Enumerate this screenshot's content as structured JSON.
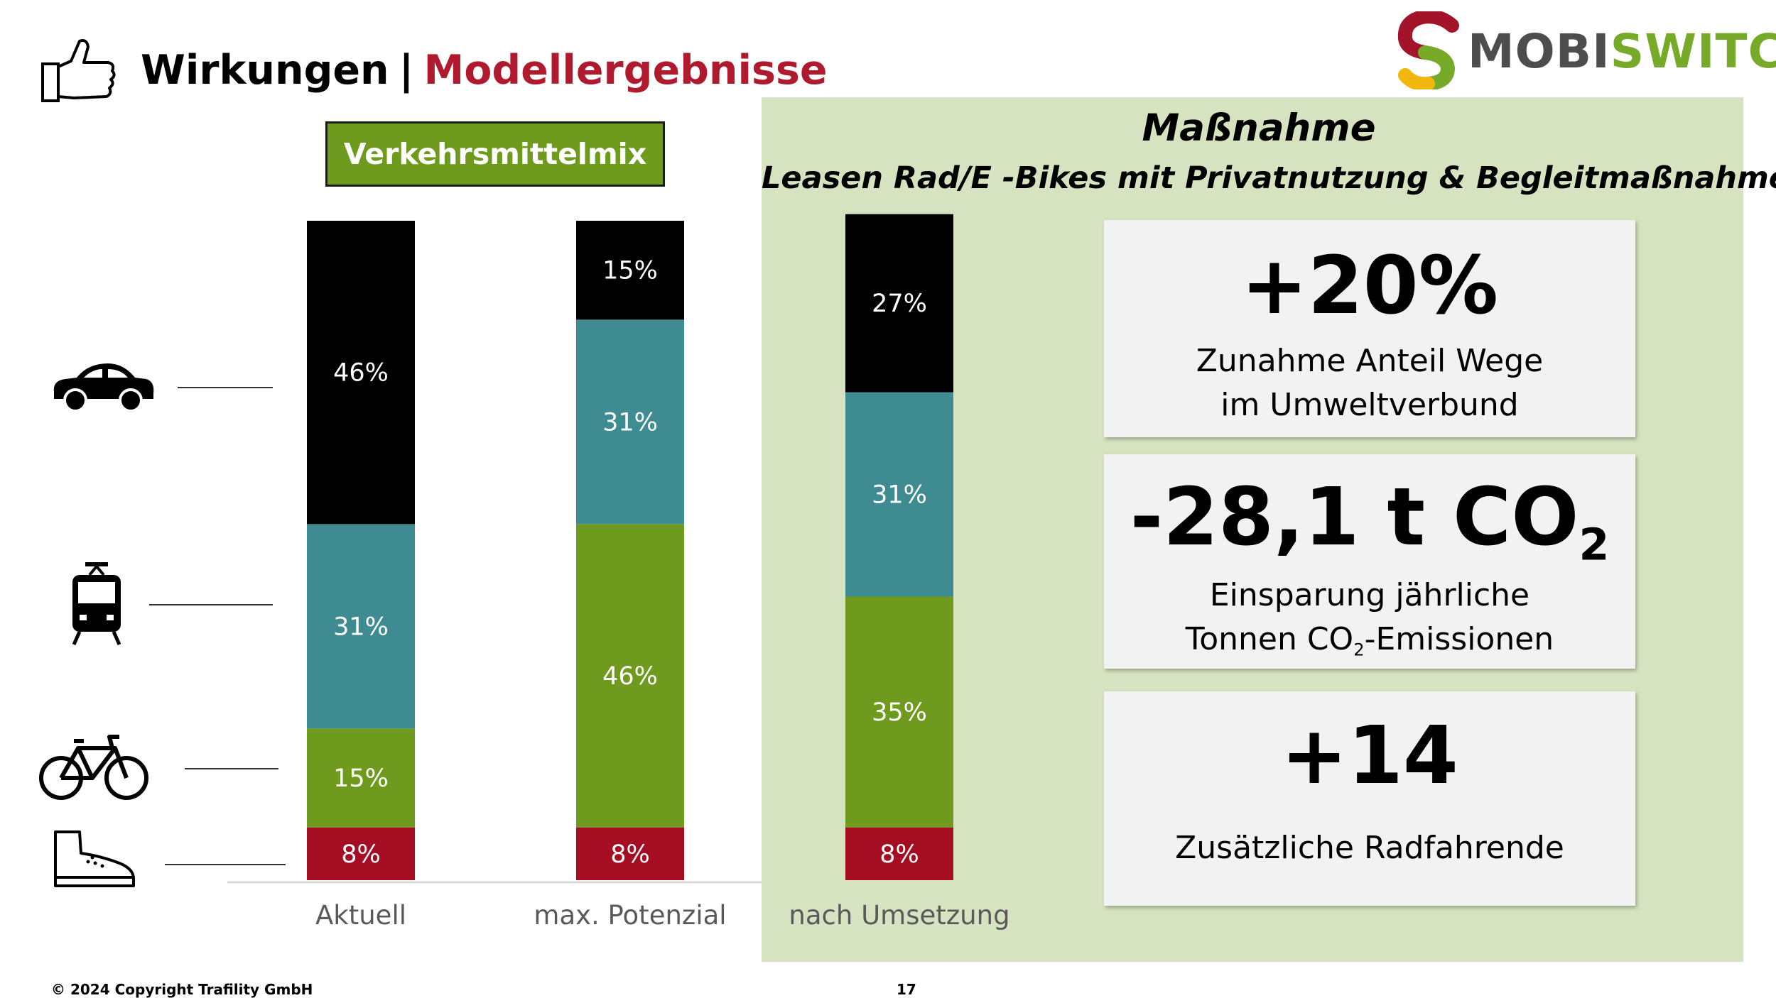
{
  "header": {
    "title_main": "Wirkungen",
    "title_separator": "|",
    "title_accent": "Modellergebnisse",
    "accent_color": "#b01a2f",
    "icon": "thumbs-up-icon"
  },
  "logo": {
    "part1": "MOBI",
    "part2": "SWITCH",
    "icon": "s-logo-icon"
  },
  "chart_badge": "Verkehrsmittelmix",
  "chart_data": {
    "type": "bar",
    "stacked": true,
    "categories": [
      "Aktuell",
      "max. Potenzial",
      "nach Umsetzung"
    ],
    "series": [
      {
        "mode": "walk",
        "color": "#a50d22",
        "values": [
          8,
          8,
          8
        ],
        "labels": [
          "8%",
          "8%",
          "8%"
        ]
      },
      {
        "mode": "bike",
        "color": "#6e9b1e",
        "values": [
          15,
          46,
          35
        ],
        "labels": [
          "15%",
          "46%",
          "35%"
        ]
      },
      {
        "mode": "public-transport",
        "color": "#3e8b91",
        "values": [
          31,
          31,
          31
        ],
        "labels": [
          "31%",
          "31%",
          "31%"
        ]
      },
      {
        "mode": "car",
        "color": "#000000",
        "values": [
          46,
          15,
          27
        ],
        "labels": [
          "46%",
          "15%",
          "27%"
        ]
      }
    ],
    "ylim": [
      0,
      100
    ],
    "legend": "icons-left",
    "grid": false
  },
  "mode_icons": [
    "car-icon",
    "tram-icon",
    "bike-icon",
    "shoe-icon"
  ],
  "panel": {
    "color": "#d6e3c0",
    "title": "Maßnahme",
    "subtitle": "Leasen Rad/E -Bikes mit Privatnutzung & Begleitmaßnahmen",
    "kpis": [
      {
        "value": "+20%",
        "desc_line1": "Zunahme Anteil Wege",
        "desc_line2": "im Umweltverbund"
      },
      {
        "value_main": "-28,1 t CO",
        "value_sub": "2",
        "desc_line1": "Einsparung jährliche",
        "desc_line2_pre": "Tonnen CO",
        "desc_line2_sub": "2",
        "desc_line2_post": "-Emissionen"
      },
      {
        "value": "+14",
        "desc_line1": "Zusätzliche Radfahrende"
      }
    ]
  },
  "footer": {
    "copyright": "© 2024 Copyright  Trafility  GmbH",
    "page": "17"
  }
}
